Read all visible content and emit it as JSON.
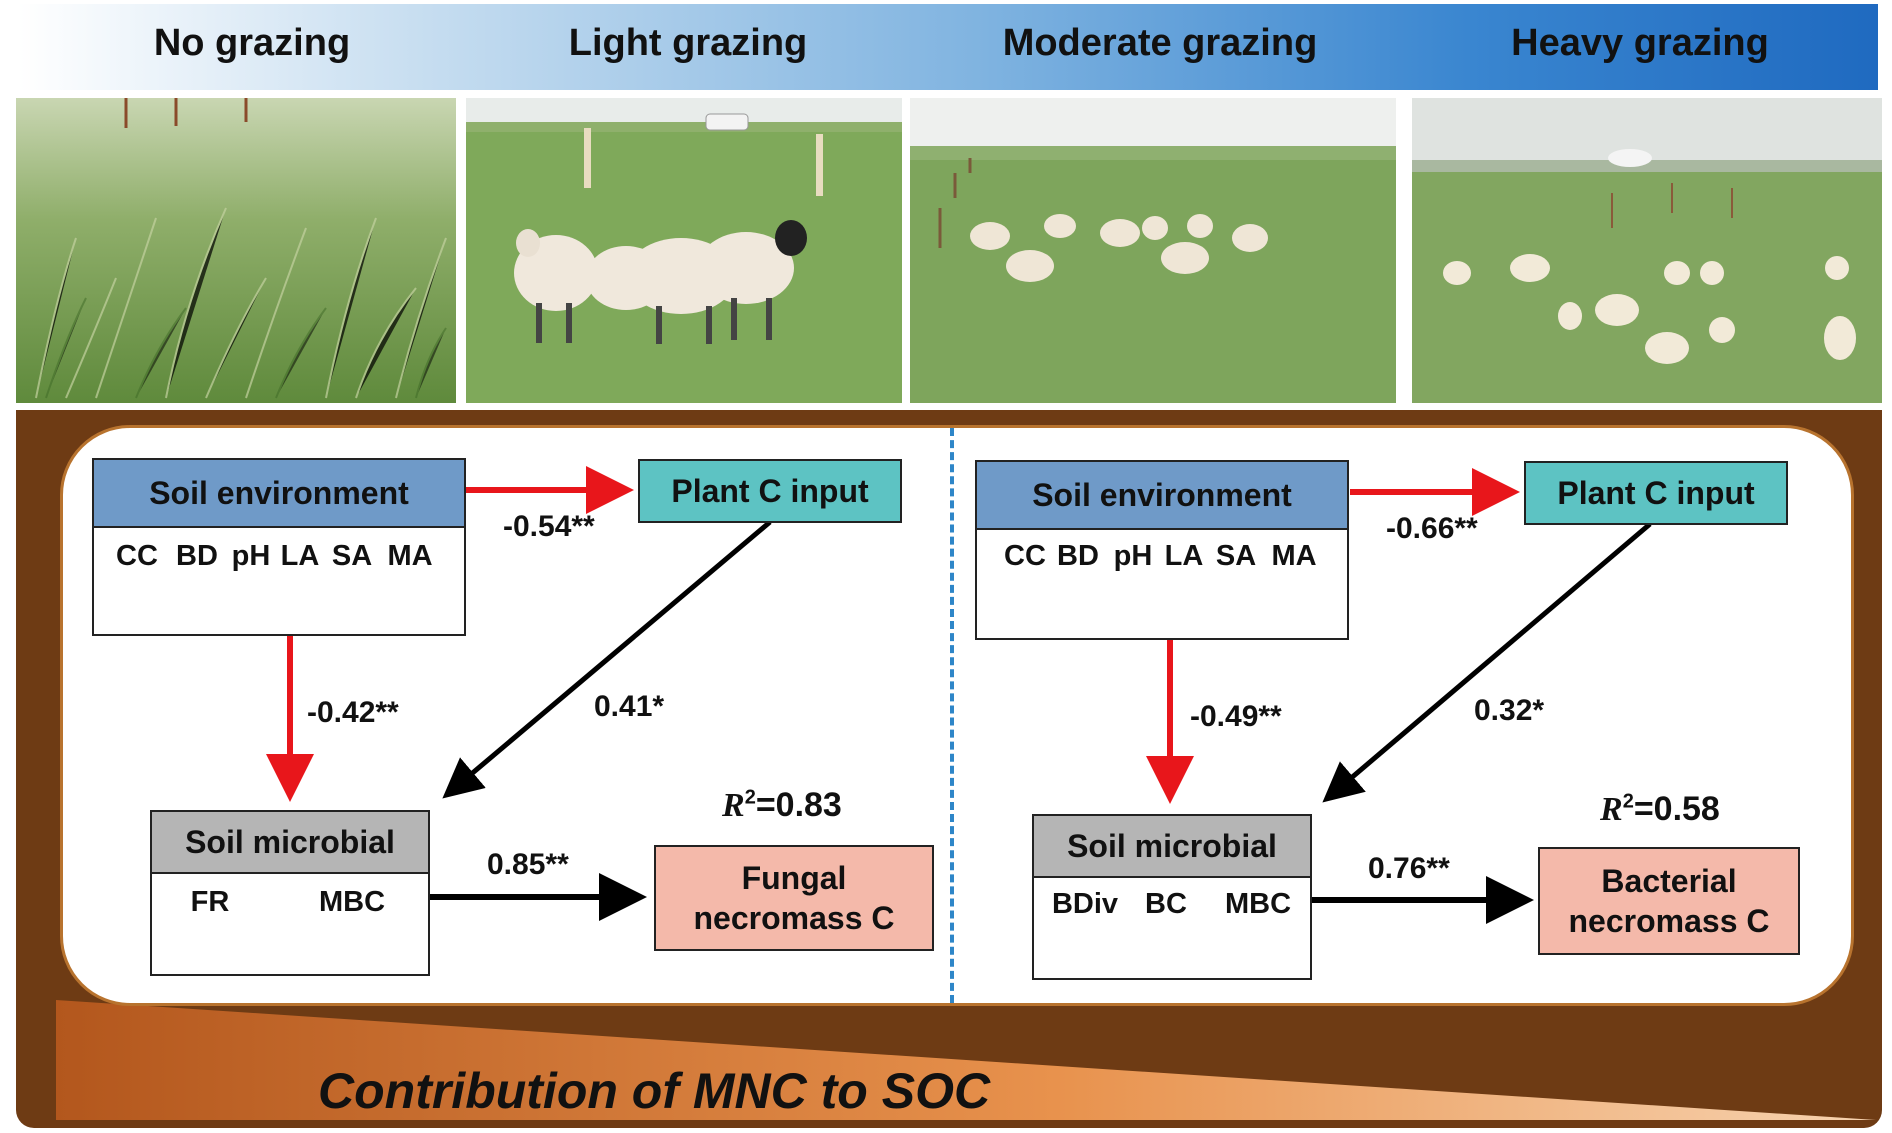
{
  "header": {
    "labels": [
      "No grazing",
      "Light grazing",
      "Moderate grazing",
      "Heavy grazing"
    ]
  },
  "photos": [
    "grassland-icon",
    "sheep-icon",
    "sheep-icon",
    "sheep-icon"
  ],
  "colors": {
    "soil": "#6e3b14",
    "panel_border": "#b8732e",
    "soil_env_head": "#6f9ac8",
    "plant_c": "#5dc3c3",
    "microbial_head": "#b5b5b5",
    "necromass": "#f4b9aa",
    "negative_path": "#e8161b",
    "positive_path": "#000000",
    "divider": "#2e86c8"
  },
  "left_model": {
    "soil_env": {
      "title": "Soil environment",
      "vars": [
        "CC",
        "BD",
        "pH",
        "LA",
        "SA",
        "MA"
      ],
      "directions": [
        "down",
        "up",
        "up",
        "down",
        "down",
        "up"
      ]
    },
    "plant_c": {
      "title": "Plant C input"
    },
    "microbial": {
      "title": "Soil microbial",
      "vars": [
        "FR",
        "MBC"
      ],
      "directions": [
        "down",
        "down"
      ]
    },
    "outcome": {
      "line1": "Fungal",
      "line2": "necromass C"
    },
    "paths": {
      "env_to_plant": "-0.54**",
      "env_to_microbial": "-0.42**",
      "plant_to_microbial": "0.41*",
      "microbial_to_outcome": "0.85**"
    },
    "r2": {
      "letter": "R",
      "sup": "2",
      "value": "=0.83"
    }
  },
  "right_model": {
    "soil_env": {
      "title": "Soil environment",
      "vars": [
        "CC",
        "BD",
        "pH",
        "LA",
        "SA",
        "MA"
      ],
      "directions": [
        "down",
        "up",
        "up",
        "down",
        "down",
        "up"
      ]
    },
    "plant_c": {
      "title": "Plant C input"
    },
    "microbial": {
      "title": "Soil microbial",
      "vars": [
        "BDiv",
        "BC",
        "MBC"
      ],
      "directions": [
        "down",
        "down",
        "down"
      ]
    },
    "outcome": {
      "line1": "Bacterial",
      "line2": "necromass C"
    },
    "paths": {
      "env_to_plant": "-0.66**",
      "env_to_microbial": "-0.49**",
      "plant_to_microbial": "0.32*",
      "microbial_to_outcome": "0.76**"
    },
    "r2": {
      "letter": "R",
      "sup": "2",
      "value": "=0.58"
    }
  },
  "footer": {
    "label": "Contribution of MNC to SOC"
  }
}
